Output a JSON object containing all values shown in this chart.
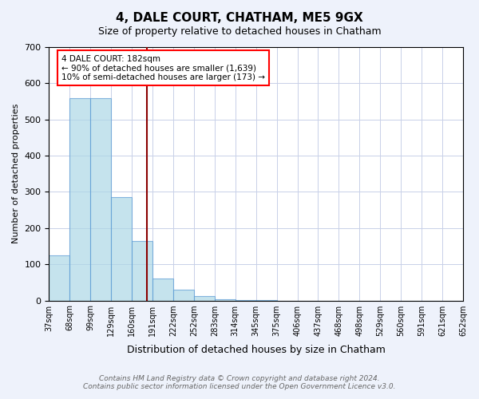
{
  "title": "4, DALE COURT, CHATHAM, ME5 9GX",
  "subtitle": "Size of property relative to detached houses in Chatham",
  "xlabel": "Distribution of detached houses by size in Chatham",
  "ylabel": "Number of detached properties",
  "footer_line1": "Contains HM Land Registry data © Crown copyright and database right 2024.",
  "footer_line2": "Contains public sector information licensed under the Open Government Licence v3.0.",
  "annotation_line1": "4 DALE COURT: 182sqm",
  "annotation_line2": "← 90% of detached houses are smaller (1,639)",
  "annotation_line3": "10% of semi-detached houses are larger (173) →",
  "tick_labels": [
    "37sqm",
    "68sqm",
    "99sqm",
    "129sqm",
    "160sqm",
    "191sqm",
    "222sqm",
    "252sqm",
    "283sqm",
    "314sqm",
    "345sqm",
    "375sqm",
    "406sqm",
    "437sqm",
    "468sqm",
    "498sqm",
    "529sqm",
    "560sqm",
    "591sqm",
    "621sqm",
    "652sqm"
  ],
  "values": [
    125,
    560,
    558,
    285,
    165,
    60,
    30,
    12,
    4,
    2,
    1,
    0,
    0,
    0,
    0,
    0,
    0,
    0,
    0,
    0
  ],
  "bar_color": "#add8e6",
  "bar_edge_color": "#5b9bd5",
  "bar_alpha": 0.7,
  "vline_sqm": 182,
  "bin_edges": [
    37,
    68,
    99,
    129,
    160,
    191,
    222,
    252,
    283,
    314,
    345,
    375,
    406,
    437,
    468,
    498,
    529,
    560,
    591,
    621,
    652
  ],
  "vline_color": "#8b0000",
  "ylim": [
    0,
    700
  ],
  "yticks": [
    0,
    100,
    200,
    300,
    400,
    500,
    600,
    700
  ],
  "bg_color": "#eef2fb",
  "plot_bg_color": "#ffffff",
  "grid_color": "#c8d0e8"
}
